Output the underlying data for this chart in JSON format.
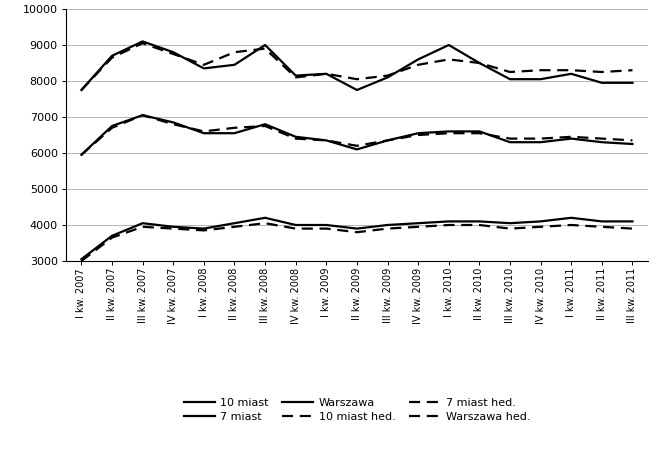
{
  "x_labels": [
    "I kw. 2007",
    "II kw. 2007",
    "III kw. 2007",
    "IV kw. 2007",
    "I kw. 2008",
    "II kw. 2008",
    "III kw. 2008",
    "IV kw. 2008",
    "I kw. 2009",
    "II kw. 2009",
    "III kw. 2009",
    "IV kw. 2009",
    "I kw. 2010",
    "II kw. 2010",
    "III kw. 2010",
    "IV kw. 2010",
    "I kw. 2011",
    "II kw. 2011",
    "III kw. 2011"
  ],
  "warszawa": [
    7750,
    8700,
    9100,
    8800,
    8350,
    8450,
    9000,
    8150,
    8200,
    7750,
    8100,
    8600,
    9000,
    8500,
    8050,
    8050,
    8200,
    7950,
    7950
  ],
  "warszawa_hed": [
    7750,
    8650,
    9050,
    8750,
    8450,
    8800,
    8900,
    8100,
    8200,
    8050,
    8150,
    8450,
    8600,
    8500,
    8250,
    8300,
    8300,
    8250,
    8300
  ],
  "siedem_miast": [
    5950,
    6750,
    7050,
    6850,
    6550,
    6550,
    6800,
    6450,
    6350,
    6100,
    6350,
    6550,
    6600,
    6600,
    6300,
    6300,
    6400,
    6300,
    6250
  ],
  "siedem_miast_hed": [
    5950,
    6700,
    7050,
    6800,
    6600,
    6700,
    6750,
    6400,
    6350,
    6200,
    6350,
    6500,
    6550,
    6550,
    6400,
    6400,
    6450,
    6400,
    6350
  ],
  "dziesiec_miast": [
    3050,
    3700,
    4050,
    3950,
    3900,
    4050,
    4200,
    4000,
    4000,
    3900,
    4000,
    4050,
    4100,
    4100,
    4050,
    4100,
    4200,
    4100,
    4100
  ],
  "dziesiec_miast_hed": [
    3000,
    3650,
    3950,
    3900,
    3850,
    3950,
    4050,
    3900,
    3900,
    3800,
    3900,
    3950,
    4000,
    4000,
    3900,
    3950,
    4000,
    3950,
    3900
  ],
  "ylim": [
    3000,
    10000
  ],
  "yticks": [
    3000,
    4000,
    5000,
    6000,
    7000,
    8000,
    9000,
    10000
  ],
  "line_color": "#000000",
  "bg_color": "#ffffff",
  "grid_color": "#aaaaaa",
  "legend_labels": [
    "10 miast",
    "7 miast",
    "Warszawa",
    "10 miast hed.",
    "7 miast hed.",
    "Warszawa hed."
  ]
}
